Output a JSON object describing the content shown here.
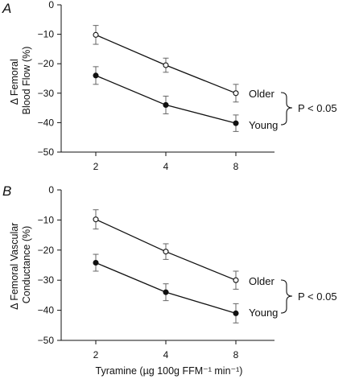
{
  "chart_data": [
    {
      "type": "line",
      "panel": "A",
      "ylabel": [
        "Δ Femoral",
        "Blood Flow (%)"
      ],
      "xlabel": "",
      "categories": [
        "2",
        "4",
        "8"
      ],
      "ylim": [
        -50,
        0
      ],
      "yticks": [
        0,
        -10,
        -20,
        -30,
        -40,
        -50
      ],
      "ytick_labels": [
        "0",
        "−10",
        "−20",
        "−30",
        "−40",
        "−50"
      ],
      "series": [
        {
          "name": "Older",
          "marker": "open",
          "values": [
            -10.2,
            -20.5,
            -30.0
          ],
          "errors": [
            3.2,
            2.4,
            3.0
          ]
        },
        {
          "name": "Young",
          "marker": "filled",
          "values": [
            -24.0,
            -34.0,
            -40.2
          ],
          "errors": [
            3.0,
            3.0,
            2.8
          ]
        }
      ],
      "annotation": "P < 0.05"
    },
    {
      "type": "line",
      "panel": "B",
      "ylabel": [
        "Δ Femoral Vascular",
        "Conductance (%)"
      ],
      "xlabel": "Tyramine (µg 100g FFM⁻¹ min⁻¹)",
      "categories": [
        "2",
        "4",
        "8"
      ],
      "ylim": [
        -50,
        0
      ],
      "yticks": [
        0,
        -10,
        -20,
        -30,
        -40,
        -50
      ],
      "ytick_labels": [
        "0",
        "−10",
        "−20",
        "−30",
        "−40",
        "−50"
      ],
      "series": [
        {
          "name": "Older",
          "marker": "open",
          "values": [
            -9.8,
            -20.5,
            -30.0
          ],
          "errors": [
            3.2,
            2.6,
            3.0
          ]
        },
        {
          "name": "Young",
          "marker": "filled",
          "values": [
            -24.2,
            -34.0,
            -41.0
          ],
          "errors": [
            2.8,
            2.8,
            3.2
          ]
        }
      ],
      "annotation": "P < 0.05"
    }
  ]
}
